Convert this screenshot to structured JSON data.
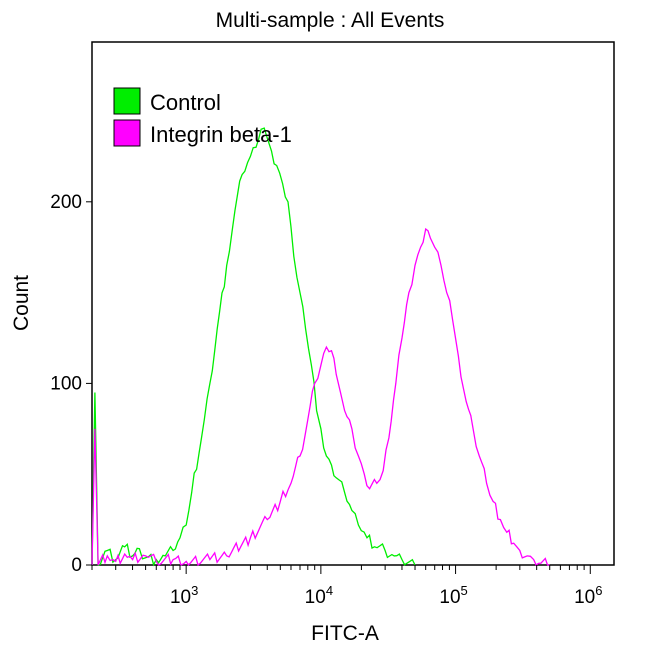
{
  "chart_data": {
    "type": "histogram-line",
    "title": "Multi-sample : All Events",
    "xlabel": "FITC-A",
    "ylabel": "Count",
    "x_scale": "log10",
    "xlim": [
      200,
      1500000
    ],
    "ylim": [
      0,
      288
    ],
    "x_ticks": [
      {
        "value": 1000,
        "base": "10",
        "exp": "3"
      },
      {
        "value": 10000,
        "base": "10",
        "exp": "4"
      },
      {
        "value": 100000,
        "base": "10",
        "exp": "5"
      },
      {
        "value": 1000000,
        "base": "10",
        "exp": "6"
      }
    ],
    "y_ticks": [
      {
        "value": 0,
        "label": "0"
      },
      {
        "value": 100,
        "label": "100"
      },
      {
        "value": 200,
        "label": "200"
      }
    ],
    "legend_position": "top-left",
    "series": [
      {
        "name": "Control",
        "color": "#00ee00",
        "points": [
          [
            200,
            0
          ],
          [
            210,
            95
          ],
          [
            222,
            0
          ],
          [
            260,
            8
          ],
          [
            300,
            3
          ],
          [
            350,
            10
          ],
          [
            400,
            5
          ],
          [
            450,
            9
          ],
          [
            500,
            4
          ],
          [
            600,
            3
          ],
          [
            700,
            5
          ],
          [
            800,
            8
          ],
          [
            900,
            15
          ],
          [
            1000,
            22
          ],
          [
            1100,
            40
          ],
          [
            1300,
            70
          ],
          [
            1500,
            100
          ],
          [
            1700,
            130
          ],
          [
            2000,
            165
          ],
          [
            2300,
            195
          ],
          [
            2600,
            215
          ],
          [
            3000,
            225
          ],
          [
            3300,
            230
          ],
          [
            3600,
            240
          ],
          [
            4000,
            235
          ],
          [
            4300,
            228
          ],
          [
            4700,
            220
          ],
          [
            5200,
            210
          ],
          [
            5700,
            200
          ],
          [
            6300,
            170
          ],
          [
            7000,
            150
          ],
          [
            7700,
            130
          ],
          [
            8500,
            110
          ],
          [
            9300,
            85
          ],
          [
            10000,
            75
          ],
          [
            11000,
            60
          ],
          [
            12000,
            55
          ],
          [
            13000,
            48
          ],
          [
            15000,
            40
          ],
          [
            17000,
            30
          ],
          [
            19000,
            22
          ],
          [
            22000,
            15
          ],
          [
            25000,
            10
          ],
          [
            30000,
            8
          ],
          [
            35000,
            5
          ],
          [
            40000,
            3
          ],
          [
            50000,
            0
          ]
        ]
      },
      {
        "name": "Integrin beta-1",
        "color": "#ff00ff",
        "points": [
          [
            200,
            0
          ],
          [
            210,
            75
          ],
          [
            222,
            0
          ],
          [
            260,
            5
          ],
          [
            300,
            2
          ],
          [
            350,
            6
          ],
          [
            400,
            3
          ],
          [
            500,
            5
          ],
          [
            600,
            2
          ],
          [
            800,
            3
          ],
          [
            1000,
            2
          ],
          [
            1500,
            3
          ],
          [
            2000,
            5
          ],
          [
            3000,
            15
          ],
          [
            4000,
            25
          ],
          [
            5000,
            35
          ],
          [
            6000,
            45
          ],
          [
            7000,
            60
          ],
          [
            8000,
            80
          ],
          [
            9000,
            100
          ],
          [
            10000,
            110
          ],
          [
            11000,
            120
          ],
          [
            12000,
            118
          ],
          [
            13000,
            105
          ],
          [
            14000,
            95
          ],
          [
            15000,
            85
          ],
          [
            17000,
            75
          ],
          [
            19000,
            60
          ],
          [
            21000,
            50
          ],
          [
            23000,
            42
          ],
          [
            26000,
            45
          ],
          [
            29000,
            52
          ],
          [
            32000,
            70
          ],
          [
            36000,
            100
          ],
          [
            40000,
            125
          ],
          [
            45000,
            150
          ],
          [
            50000,
            165
          ],
          [
            55000,
            175
          ],
          [
            60000,
            185
          ],
          [
            65000,
            180
          ],
          [
            70000,
            175
          ],
          [
            78000,
            165
          ],
          [
            86000,
            150
          ],
          [
            95000,
            135
          ],
          [
            105000,
            115
          ],
          [
            120000,
            90
          ],
          [
            135000,
            75
          ],
          [
            150000,
            60
          ],
          [
            170000,
            45
          ],
          [
            190000,
            35
          ],
          [
            215000,
            25
          ],
          [
            240000,
            18
          ],
          [
            270000,
            12
          ],
          [
            300000,
            8
          ],
          [
            340000,
            5
          ],
          [
            380000,
            3
          ],
          [
            430000,
            1
          ],
          [
            500000,
            0
          ]
        ]
      }
    ]
  }
}
